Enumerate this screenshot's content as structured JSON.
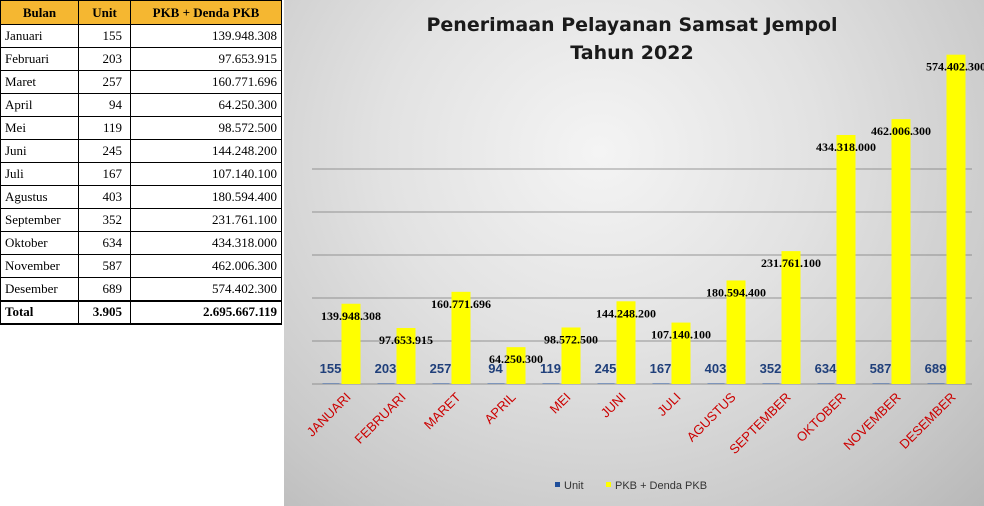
{
  "table": {
    "headers": [
      "Bulan",
      "Unit",
      "PKB + Denda PKB"
    ],
    "rows": [
      {
        "bulan": "Januari",
        "unit": "155",
        "pkb": "139.948.308"
      },
      {
        "bulan": "Februari",
        "unit": "203",
        "pkb": "97.653.915"
      },
      {
        "bulan": "Maret",
        "unit": "257",
        "pkb": "160.771.696"
      },
      {
        "bulan": "April",
        "unit": "94",
        "pkb": "64.250.300"
      },
      {
        "bulan": "Mei",
        "unit": "119",
        "pkb": "98.572.500"
      },
      {
        "bulan": "Juni",
        "unit": "245",
        "pkb": "144.248.200"
      },
      {
        "bulan": "Juli",
        "unit": "167",
        "pkb": "107.140.100"
      },
      {
        "bulan": "Agustus",
        "unit": "403",
        "pkb": "180.594.400"
      },
      {
        "bulan": "September",
        "unit": "352",
        "pkb": "231.761.100"
      },
      {
        "bulan": "Oktober",
        "unit": "634",
        "pkb": "434.318.000"
      },
      {
        "bulan": "November",
        "unit": "587",
        "pkb": "462.006.300"
      },
      {
        "bulan": "Desember",
        "unit": "689",
        "pkb": "574.402.300"
      }
    ],
    "total": {
      "label": "Total",
      "unit": "3.905",
      "pkb": "2.695.667.119"
    }
  },
  "colors": {
    "header_bg": "#f5b731",
    "bar_pkb": "#ffff00",
    "bar_unit": "#1f4e9a",
    "category_label": "#cc0000",
    "unit_label": "#1f3f7a"
  },
  "chart_data": {
    "type": "bar",
    "title": [
      "Penerimaan Pelayanan Samsat Jempol",
      "Tahun 2022"
    ],
    "categories": [
      "JANUARI",
      "FEBRUARI",
      "MARET",
      "APRIL",
      "MEI",
      "JUNI",
      "JULI",
      "AGUSTUS",
      "SEPTEMBER",
      "OKTOBER",
      "NOVEMBER",
      "DESEMBER"
    ],
    "series": [
      {
        "name": "Unit",
        "values": [
          155,
          203,
          257,
          94,
          119,
          245,
          167,
          403,
          352,
          634,
          587,
          689
        ],
        "labels": [
          "155",
          "203",
          "257",
          "94",
          "119",
          "245",
          "167",
          "403",
          "352",
          "634",
          "587",
          "689"
        ]
      },
      {
        "name": "PKB + Denda PKB",
        "values": [
          139948308,
          97653915,
          160771696,
          64250300,
          98572500,
          144248200,
          107140100,
          180594400,
          231761100,
          434318000,
          462006300,
          574402300
        ],
        "labels": [
          "139.948.308",
          "97.653.915",
          "160.771.696",
          "64.250.300",
          "98.572.500",
          "144.248.200",
          "107.140.100",
          "180.594.400",
          "231.761.100",
          "434.318.000",
          "462.006.300",
          "574.402.300"
        ]
      }
    ],
    "grid": true,
    "legend": "bottom"
  }
}
